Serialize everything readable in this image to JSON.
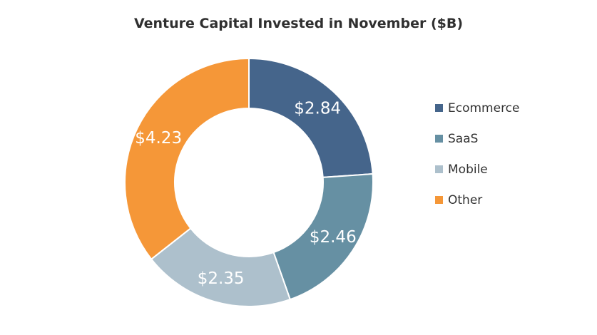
{
  "chart_data": {
    "type": "pie",
    "variant": "donut",
    "title": "Venture Capital Invested in November ($B)",
    "categories": [
      "Ecommerce",
      "SaaS",
      "Mobile",
      "Other"
    ],
    "values": [
      2.84,
      2.46,
      2.35,
      4.23
    ],
    "value_labels": [
      "$2.84",
      "$2.46",
      "$2.35",
      "$4.23"
    ],
    "colors": [
      "#45658b",
      "#6690a3",
      "#adc0cc",
      "#f59738"
    ],
    "legend_position": "right",
    "start_angle_deg": 0,
    "direction": "clockwise"
  }
}
